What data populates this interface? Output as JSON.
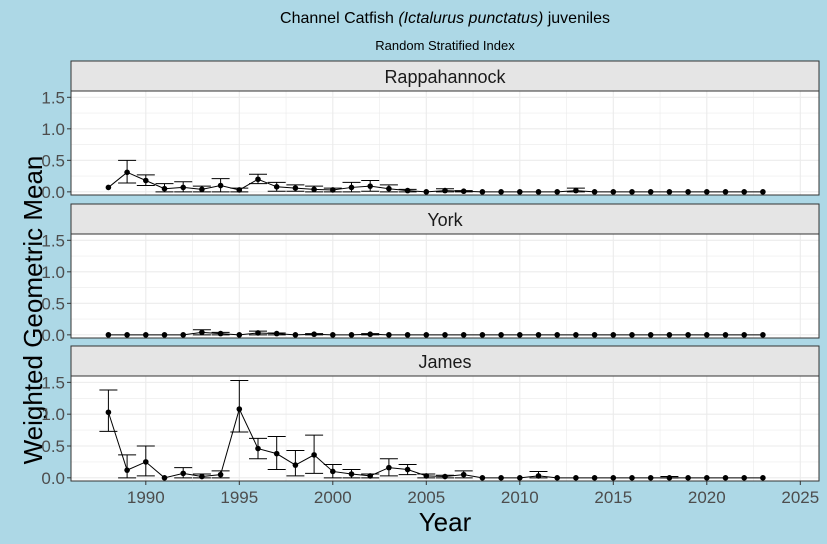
{
  "chart_data": {
    "type": "line",
    "title_parts": [
      "Channel Catfish ",
      "(Ictalurus punctatus)",
      " juveniles"
    ],
    "subtitle": "Random Stratified Index",
    "xlabel": "Year",
    "ylabel": "Weighted Geometric Mean",
    "xlim": [
      1986,
      2026
    ],
    "ylim": [
      -0.05,
      1.6
    ],
    "x_ticks": [
      1990,
      1995,
      2000,
      2005,
      2010,
      2015,
      2020,
      2025
    ],
    "y_ticks": [
      0.0,
      0.5,
      1.0,
      1.5
    ],
    "x_tick_labels": [
      "1990",
      "1995",
      "2000",
      "2005",
      "2010",
      "2015",
      "2020",
      "2025"
    ],
    "y_tick_labels": [
      "0.0",
      "0.5",
      "1.0",
      "1.5"
    ],
    "grid": true,
    "panels": [
      {
        "name": "Rappahannock",
        "x": [
          1988,
          1989,
          1990,
          1991,
          1992,
          1993,
          1994,
          1995,
          1996,
          1997,
          1998,
          1999,
          2000,
          2001,
          2002,
          2003,
          2004,
          2005,
          2006,
          2007,
          2008,
          2009,
          2010,
          2011,
          2012,
          2013,
          2014,
          2015,
          2016,
          2017,
          2018,
          2019,
          2020,
          2021,
          2022,
          2023
        ],
        "y": [
          0.07,
          0.31,
          0.18,
          0.05,
          0.07,
          0.04,
          0.1,
          0.03,
          0.2,
          0.08,
          0.06,
          0.04,
          0.03,
          0.07,
          0.09,
          0.05,
          0.02,
          0.0,
          0.02,
          0.01,
          0.0,
          0.0,
          0.0,
          0.0,
          0.0,
          0.02,
          0.0,
          0.0,
          0.0,
          0.0,
          0.0,
          0.0,
          0.0,
          0.0,
          0.0,
          0.0
        ],
        "lo": [
          0.07,
          0.14,
          0.1,
          0.0,
          0.0,
          0.0,
          0.0,
          0.0,
          0.13,
          0.01,
          0.01,
          0.0,
          0.0,
          0.0,
          0.01,
          0.0,
          0.0,
          0.0,
          0.0,
          0.0,
          0.0,
          0.0,
          0.0,
          0.0,
          0.0,
          0.0,
          0.0,
          0.0,
          0.0,
          0.0,
          0.0,
          0.0,
          0.0,
          0.0,
          0.0,
          0.0
        ],
        "hi": [
          0.07,
          0.5,
          0.27,
          0.13,
          0.16,
          0.09,
          0.21,
          0.06,
          0.28,
          0.15,
          0.11,
          0.09,
          0.06,
          0.15,
          0.18,
          0.11,
          0.04,
          0.0,
          0.05,
          0.02,
          0.0,
          0.0,
          0.0,
          0.0,
          0.0,
          0.06,
          0.0,
          0.0,
          0.0,
          0.0,
          0.0,
          0.0,
          0.0,
          0.0,
          0.0,
          0.0
        ]
      },
      {
        "name": "York",
        "x": [
          1988,
          1989,
          1990,
          1991,
          1992,
          1993,
          1994,
          1995,
          1996,
          1997,
          1998,
          1999,
          2000,
          2001,
          2002,
          2003,
          2004,
          2005,
          2006,
          2007,
          2008,
          2009,
          2010,
          2011,
          2012,
          2013,
          2014,
          2015,
          2016,
          2017,
          2018,
          2019,
          2020,
          2021,
          2022,
          2023
        ],
        "y": [
          0.0,
          0.0,
          0.0,
          0.0,
          0.0,
          0.04,
          0.02,
          0.0,
          0.03,
          0.02,
          0.0,
          0.01,
          0.0,
          0.0,
          0.01,
          0.0,
          0.0,
          0.0,
          0.0,
          0.0,
          0.0,
          0.0,
          0.0,
          0.0,
          0.0,
          0.0,
          0.0,
          0.0,
          0.0,
          0.0,
          0.0,
          0.0,
          0.0,
          0.0,
          0.0,
          0.0
        ],
        "lo": [
          0.0,
          0.0,
          0.0,
          0.0,
          0.0,
          0.0,
          0.0,
          0.0,
          0.0,
          0.0,
          0.0,
          0.0,
          0.0,
          0.0,
          0.0,
          0.0,
          0.0,
          0.0,
          0.0,
          0.0,
          0.0,
          0.0,
          0.0,
          0.0,
          0.0,
          0.0,
          0.0,
          0.0,
          0.0,
          0.0,
          0.0,
          0.0,
          0.0,
          0.0,
          0.0,
          0.0
        ],
        "hi": [
          0.0,
          0.0,
          0.0,
          0.0,
          0.0,
          0.08,
          0.04,
          0.0,
          0.06,
          0.03,
          0.0,
          0.02,
          0.0,
          0.0,
          0.02,
          0.0,
          0.0,
          0.0,
          0.0,
          0.0,
          0.0,
          0.0,
          0.0,
          0.0,
          0.0,
          0.0,
          0.0,
          0.0,
          0.0,
          0.0,
          0.0,
          0.0,
          0.0,
          0.0,
          0.0,
          0.0
        ]
      },
      {
        "name": "James",
        "x": [
          1988,
          1989,
          1990,
          1991,
          1992,
          1993,
          1994,
          1995,
          1996,
          1997,
          1998,
          1999,
          2000,
          2001,
          2002,
          2003,
          2004,
          2005,
          2006,
          2007,
          2008,
          2009,
          2010,
          2011,
          2012,
          2013,
          2014,
          2015,
          2016,
          2017,
          2018,
          2019,
          2020,
          2021,
          2022,
          2023
        ],
        "y": [
          1.03,
          0.12,
          0.25,
          0.0,
          0.07,
          0.02,
          0.05,
          1.08,
          0.46,
          0.38,
          0.2,
          0.36,
          0.1,
          0.06,
          0.03,
          0.16,
          0.13,
          0.03,
          0.02,
          0.05,
          0.0,
          0.0,
          0.0,
          0.03,
          0.0,
          0.0,
          0.0,
          0.0,
          0.0,
          0.0,
          0.0,
          0.0,
          0.0,
          0.0,
          0.0,
          0.0
        ],
        "lo": [
          0.73,
          0.0,
          0.03,
          0.0,
          0.0,
          0.0,
          0.0,
          0.72,
          0.3,
          0.13,
          0.03,
          0.07,
          0.0,
          0.0,
          0.0,
          0.03,
          0.05,
          0.0,
          0.0,
          0.0,
          0.0,
          0.0,
          0.0,
          0.0,
          0.0,
          0.0,
          0.0,
          0.0,
          0.0,
          0.0,
          0.0,
          0.0,
          0.0,
          0.0,
          0.0,
          0.0
        ],
        "hi": [
          1.38,
          0.36,
          0.5,
          0.0,
          0.16,
          0.06,
          0.11,
          1.53,
          0.62,
          0.65,
          0.43,
          0.67,
          0.21,
          0.13,
          0.06,
          0.3,
          0.21,
          0.06,
          0.04,
          0.11,
          0.0,
          0.0,
          0.0,
          0.1,
          0.0,
          0.0,
          0.0,
          0.0,
          0.0,
          0.0,
          0.02,
          0.0,
          0.0,
          0.0,
          0.0,
          0.0
        ]
      }
    ]
  },
  "colors": {
    "background": "#add8e6",
    "panel": "#ffffff",
    "strip": "#e5e5e5",
    "grid": "#ebebeb",
    "series": "#000000"
  }
}
